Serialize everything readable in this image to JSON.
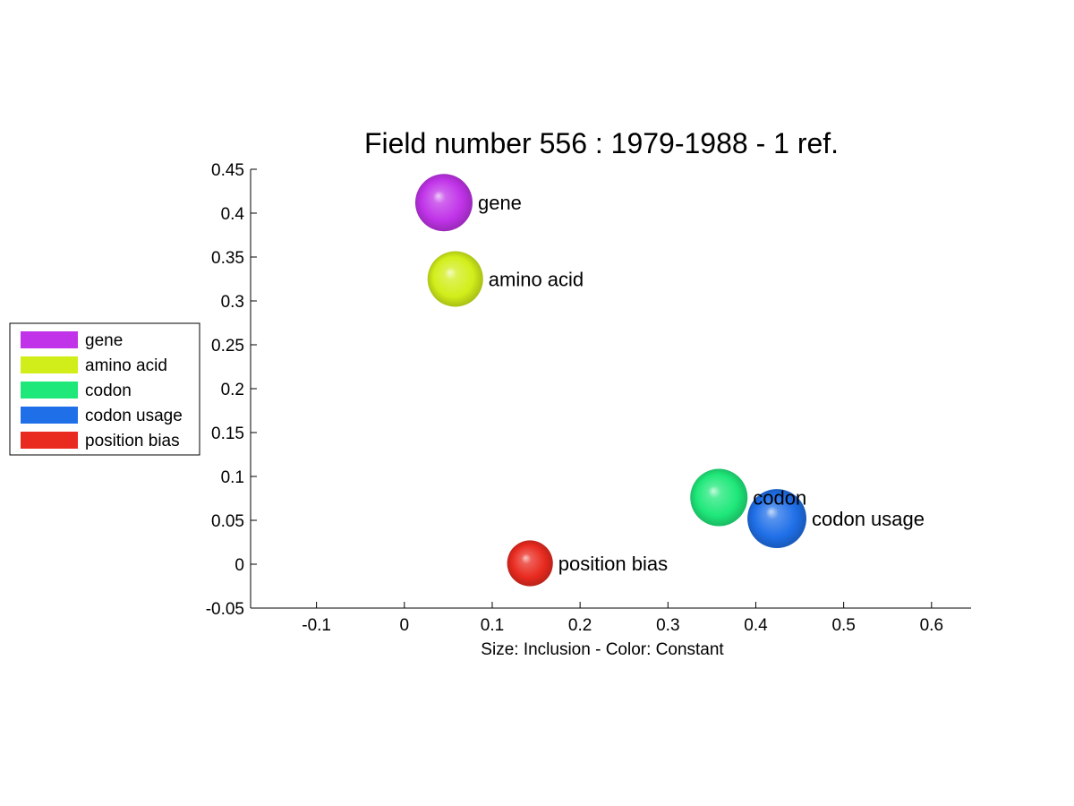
{
  "chart_data": {
    "type": "scatter",
    "title": "Field number 556 : 1979-1988  - 1 ref.",
    "xlabel": "Size: Inclusion - Color: Constant",
    "ylabel": "",
    "xlim": [
      -0.175,
      0.645
    ],
    "ylim": [
      -0.05,
      0.45
    ],
    "xticks": [
      "-0.1",
      "0",
      "0.1",
      "0.2",
      "0.3",
      "0.4",
      "0.5",
      "0.6"
    ],
    "yticks": [
      "-0.05",
      "0",
      "0.05",
      "0.1",
      "0.15",
      "0.2",
      "0.25",
      "0.3",
      "0.35",
      "0.4",
      "0.45"
    ],
    "legend_position": "left",
    "grid": false,
    "points": [
      {
        "label": "gene",
        "x": 0.045,
        "y": 0.412,
        "size": 1.0,
        "color": "#c033e8"
      },
      {
        "label": "amino acid",
        "x": 0.058,
        "y": 0.325,
        "size": 0.97,
        "color": "#d2ee1a"
      },
      {
        "label": "codon",
        "x": 0.358,
        "y": 0.076,
        "size": 1.0,
        "color": "#1fe87a"
      },
      {
        "label": "codon usage",
        "x": 0.424,
        "y": 0.052,
        "size": 1.03,
        "color": "#1f6fe8"
      },
      {
        "label": "position bias",
        "x": 0.143,
        "y": 0.001,
        "size": 0.8,
        "color": "#e82a1f"
      }
    ]
  }
}
